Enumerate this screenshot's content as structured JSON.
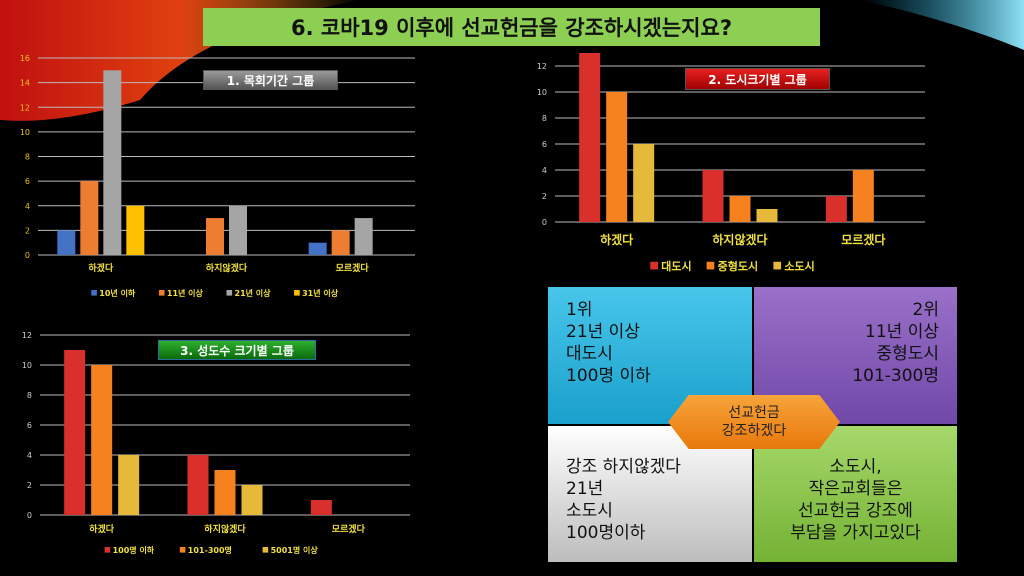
{
  "slide_title": "6. 코바19 이후에 선교헌금을 강조하시겠는지요?",
  "chart_data": [
    {
      "type": "bar",
      "title": "1. 목회기간 그룹",
      "categories": [
        "하겠다",
        "하지않겠다",
        "모르겠다"
      ],
      "series": [
        {
          "name": "10년 이하",
          "values": [
            2,
            0,
            1
          ],
          "color": "#4472c4"
        },
        {
          "name": "11년 이상",
          "values": [
            6,
            3,
            2
          ],
          "color": "#ed7d31"
        },
        {
          "name": "21년 이상",
          "values": [
            15,
            4,
            3
          ],
          "color": "#a5a5a5"
        },
        {
          "name": "31년 이상",
          "values": [
            4,
            0,
            0
          ],
          "color": "#ffc000"
        }
      ],
      "ylim": [
        0,
        16
      ],
      "yticks": [
        0,
        2,
        4,
        6,
        8,
        10,
        12,
        14,
        16
      ],
      "legend": "bottom",
      "grid": true
    },
    {
      "type": "bar",
      "title": "2. 도시크기별 그룹",
      "categories": [
        "하겠다",
        "하지않겠다",
        "모르겠다"
      ],
      "series": [
        {
          "name": "대도시",
          "values": [
            13,
            4,
            2
          ],
          "color": "#d9302b"
        },
        {
          "name": "중형도시",
          "values": [
            10,
            2,
            4
          ],
          "color": "#f5821f"
        },
        {
          "name": "소도시",
          "values": [
            6,
            1,
            0
          ],
          "color": "#e6b93a"
        }
      ],
      "ylim": [
        0,
        12
      ],
      "yticks": [
        0,
        2,
        4,
        6,
        8,
        10,
        12
      ],
      "legend": "bottom",
      "grid": true
    },
    {
      "type": "bar",
      "title": "3. 성도수 크기별 그룹",
      "categories": [
        "하겠다",
        "하지않겠다",
        "모르겠다"
      ],
      "series": [
        {
          "name": "100명 이하",
          "values": [
            11,
            4,
            1
          ],
          "color": "#d9302b"
        },
        {
          "name": "101-300명",
          "values": [
            10,
            3,
            0
          ],
          "color": "#f5821f"
        },
        {
          "name": "5001명 이상",
          "values": [
            4,
            2,
            0
          ],
          "color": "#e6b93a"
        }
      ],
      "ylim": [
        0,
        12
      ],
      "yticks": [
        0,
        2,
        4,
        6,
        8,
        10,
        12
      ],
      "legend": "bottom",
      "grid": true
    }
  ],
  "summary": {
    "q1": [
      "1위",
      "21년 이상",
      "대도시",
      "100명 이하"
    ],
    "q2": [
      "2위",
      "11년 이상",
      "중형도시",
      "101-300명"
    ],
    "q3": [
      "강조 하지않겠다",
      "21년",
      "소도시",
      "100명이하"
    ],
    "q4": [
      "소도시,",
      "작은교회들은",
      "선교헌금 강조에",
      "부담을 가지고있다"
    ],
    "center": [
      "선교헌금",
      "강조하겠다"
    ]
  }
}
